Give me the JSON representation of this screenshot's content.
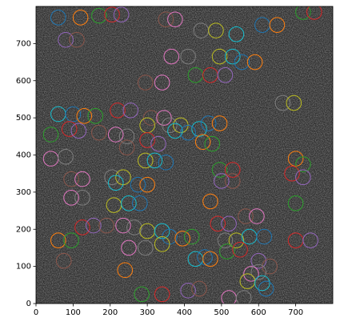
{
  "chart_data": {
    "type": "aperture-image",
    "xlim": [
      0,
      800
    ],
    "ylim": [
      0,
      800
    ],
    "xticks": [
      0,
      100,
      200,
      300,
      400,
      500,
      600,
      700
    ],
    "yticks": [
      0,
      100,
      200,
      300,
      400,
      500,
      600,
      700
    ],
    "radius": 20,
    "colors": [
      "#1f77b4",
      "#ff7f0e",
      "#2ca02c",
      "#d62728",
      "#9467bd",
      "#8c564b",
      "#e377c2",
      "#7f7f7f",
      "#bcbd22",
      "#17becf"
    ],
    "x": [
      60,
      120,
      170,
      205,
      230,
      350,
      375,
      445,
      485,
      540,
      610,
      650,
      720,
      750,
      80,
      110,
      365,
      410,
      495,
      530,
      555,
      590,
      430,
      470,
      510,
      295,
      340,
      665,
      695,
      60,
      100,
      130,
      160,
      220,
      255,
      310,
      345,
      360,
      390,
      440,
      465,
      495,
      40,
      90,
      115,
      170,
      215,
      245,
      300,
      375,
      410,
      450,
      475,
      300,
      330,
      245,
      40,
      80,
      295,
      320,
      350,
      700,
      720,
      690,
      720,
      95,
      125,
      205,
      235,
      215,
      275,
      300,
      495,
      530,
      500,
      530,
      95,
      125,
      210,
      250,
      280,
      470,
      700,
      125,
      155,
      190,
      235,
      265,
      300,
      340,
      360,
      395,
      420,
      490,
      520,
      565,
      595,
      510,
      540,
      575,
      615,
      60,
      95,
      700,
      740,
      75,
      250,
      295,
      340,
      430,
      455,
      470,
      515,
      550,
      600,
      630,
      580,
      600,
      570,
      610,
      620,
      240,
      285,
      340,
      410,
      440,
      520,
      560
    ],
    "y": [
      770,
      770,
      775,
      778,
      778,
      765,
      765,
      735,
      735,
      725,
      750,
      750,
      785,
      785,
      710,
      710,
      665,
      665,
      665,
      665,
      650,
      650,
      615,
      615,
      615,
      595,
      595,
      540,
      540,
      510,
      510,
      505,
      505,
      520,
      520,
      500,
      500,
      480,
      480,
      470,
      485,
      485,
      455,
      470,
      465,
      460,
      455,
      450,
      480,
      465,
      460,
      435,
      430,
      440,
      430,
      420,
      390,
      395,
      385,
      385,
      380,
      390,
      375,
      350,
      340,
      335,
      335,
      340,
      340,
      325,
      320,
      320,
      360,
      360,
      330,
      330,
      285,
      285,
      265,
      270,
      270,
      275,
      270,
      205,
      210,
      210,
      210,
      205,
      195,
      195,
      180,
      175,
      180,
      215,
      215,
      235,
      235,
      170,
      170,
      180,
      180,
      170,
      170,
      170,
      170,
      115,
      150,
      150,
      160,
      120,
      125,
      120,
      140,
      145,
      115,
      100,
      80,
      85,
      60,
      55,
      40,
      90,
      25,
      25,
      35,
      40,
      15,
      15
    ]
  }
}
